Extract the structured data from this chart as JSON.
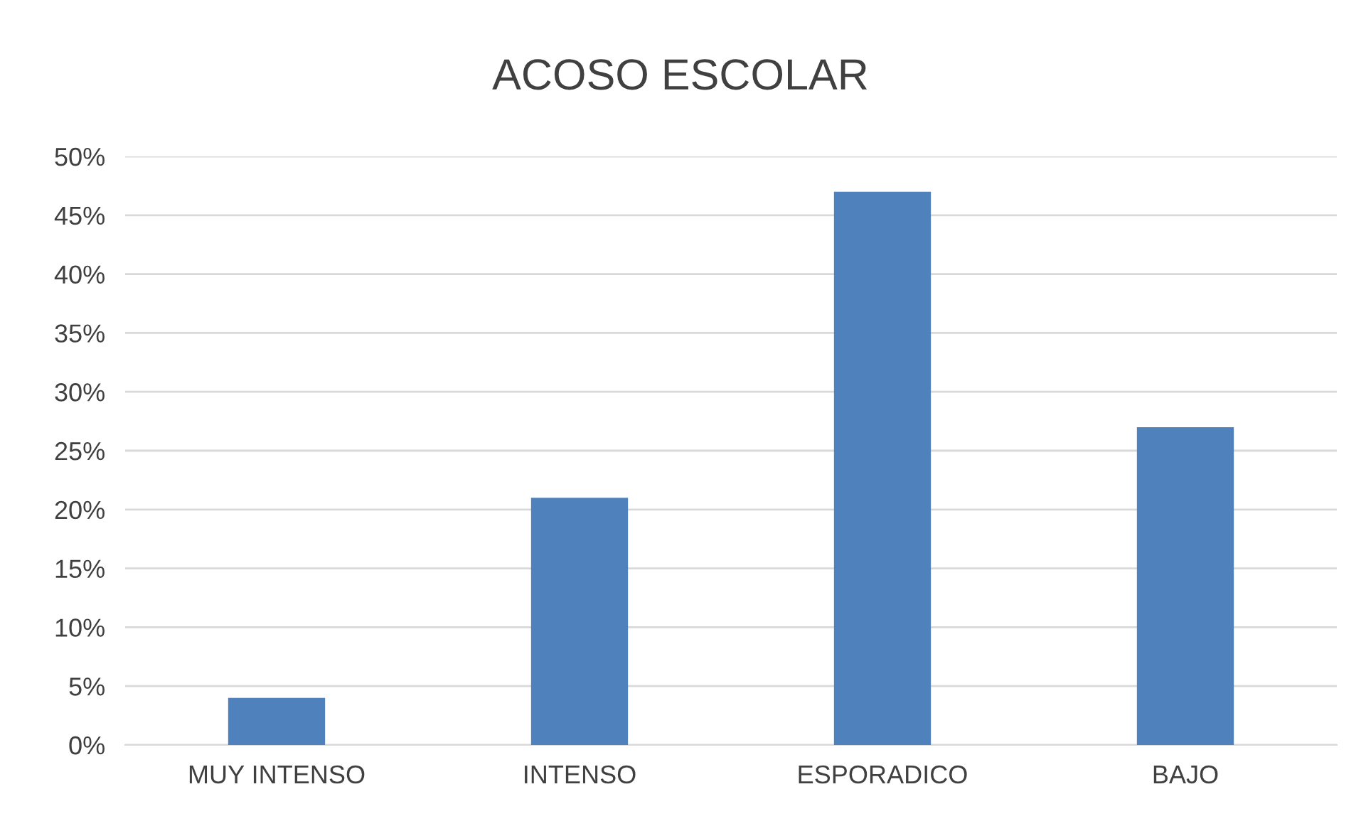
{
  "chart_data": {
    "type": "bar",
    "title": "ACOSO ESCOLAR",
    "categories": [
      "MUY INTENSO",
      "INTENSO",
      "ESPORADICO",
      "BAJO"
    ],
    "values": [
      4,
      21,
      47,
      27
    ],
    "color": "#4f81bd",
    "ylim": [
      0,
      50
    ],
    "yticks": [
      {
        "value": 0,
        "label": "0%"
      },
      {
        "value": 5,
        "label": "5%"
      },
      {
        "value": 10,
        "label": "10%"
      },
      {
        "value": 15,
        "label": "15%"
      },
      {
        "value": 20,
        "label": "20%"
      },
      {
        "value": 25,
        "label": "25%"
      },
      {
        "value": 30,
        "label": "30%"
      },
      {
        "value": 35,
        "label": "35%"
      },
      {
        "value": 40,
        "label": "40%"
      },
      {
        "value": 45,
        "label": "45%"
      },
      {
        "value": 50,
        "label": "50%"
      }
    ],
    "grid": "y"
  }
}
